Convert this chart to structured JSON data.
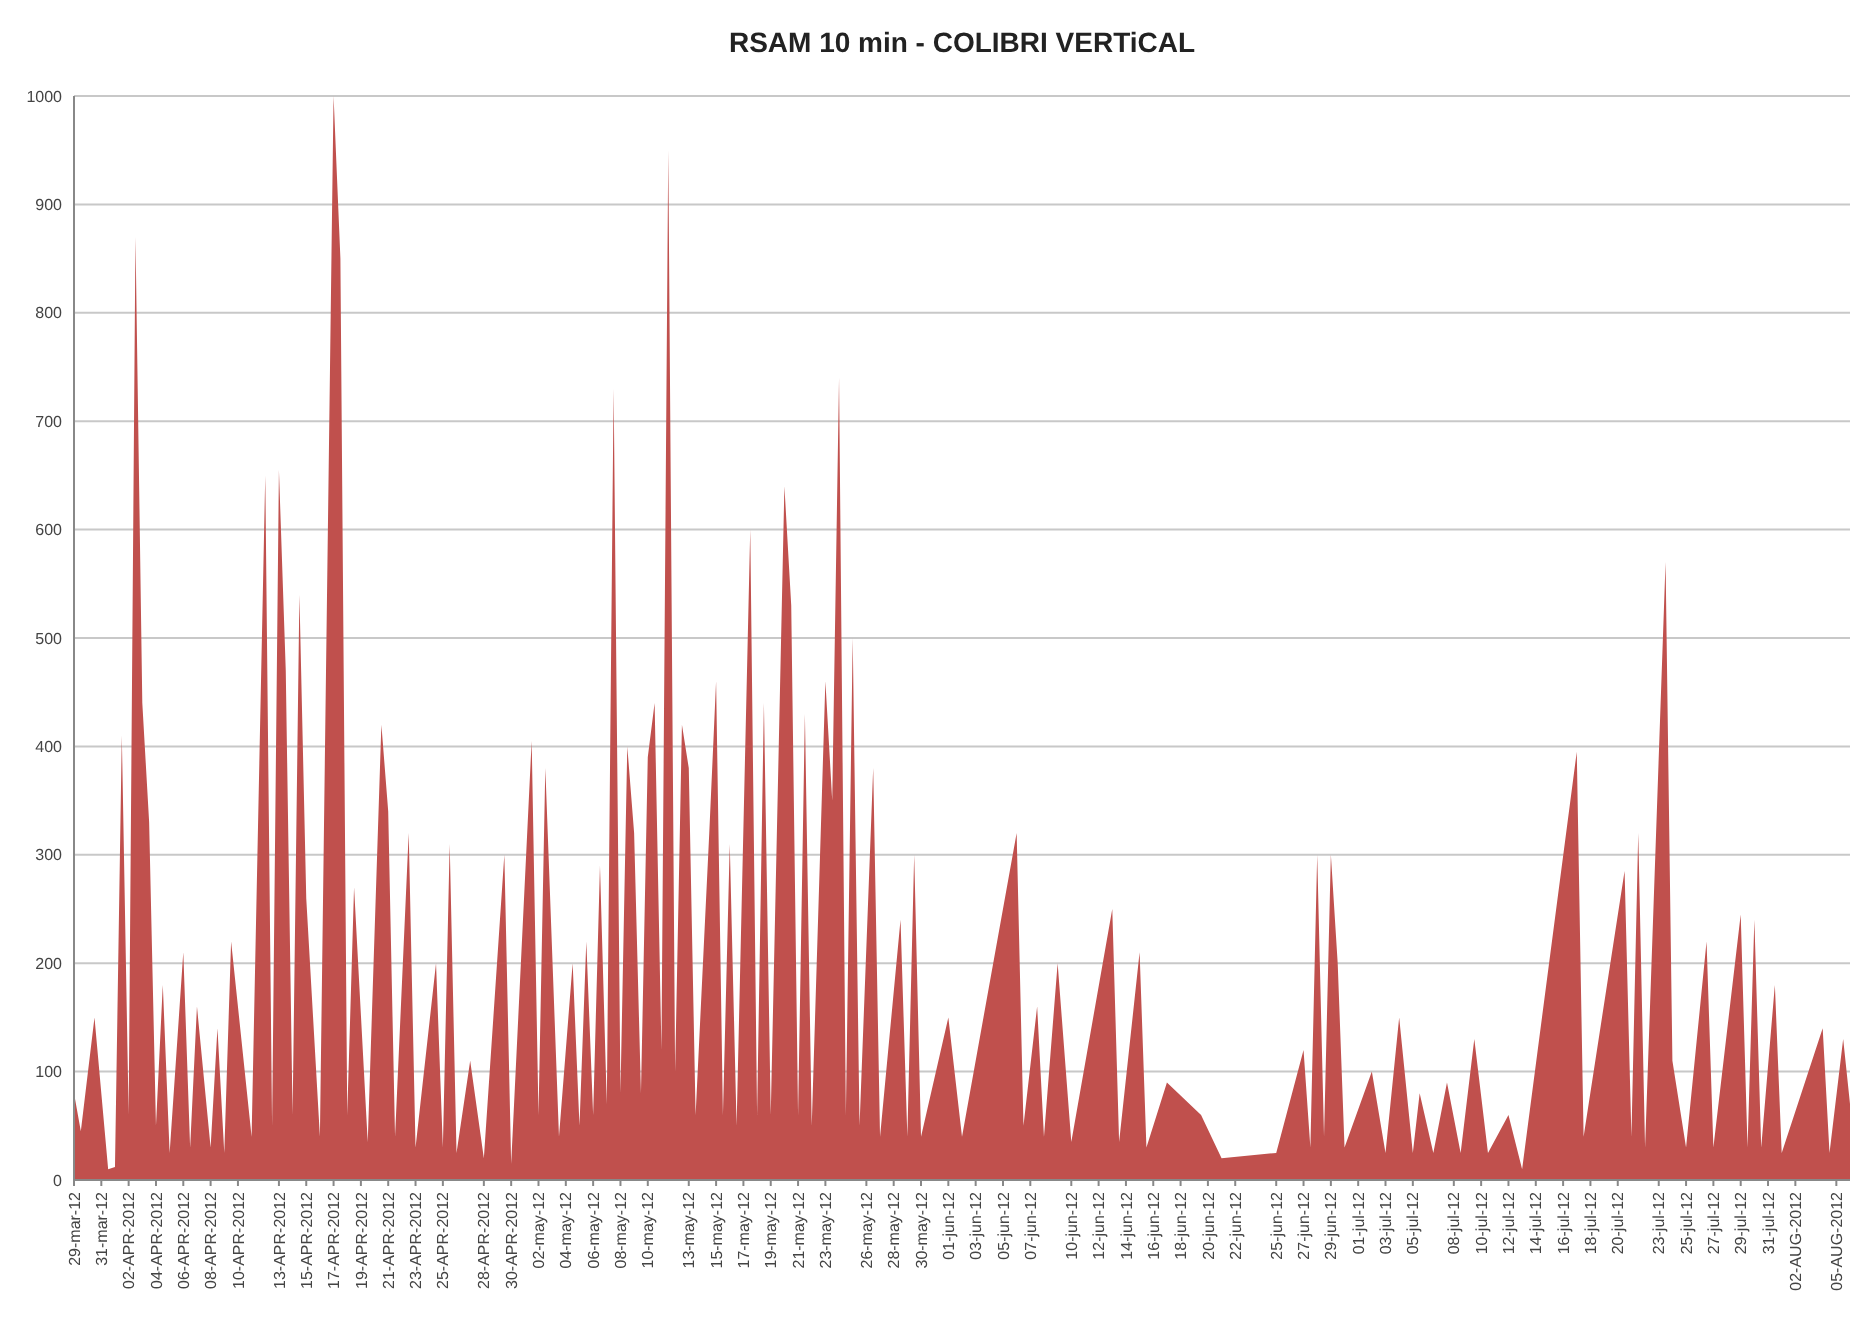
{
  "chart_data": {
    "type": "area",
    "title": "RSAM 10 min - COLIBRI VERTiCAL",
    "grid": "y",
    "ylim": [
      0,
      1000
    ],
    "yticks": [
      0,
      100,
      200,
      300,
      400,
      500,
      600,
      700,
      800,
      900,
      1000
    ],
    "xlim": [
      "2012-03-29",
      "2012-08-06"
    ],
    "xticks": [
      {
        "value": "2012-03-29",
        "label": "29-mar-12"
      },
      {
        "value": "2012-03-31",
        "label": "31-mar-12"
      },
      {
        "value": "2012-04-02",
        "label": "02-APR-2012"
      },
      {
        "value": "2012-04-04",
        "label": "04-APR-2012"
      },
      {
        "value": "2012-04-06",
        "label": "06-APR-2012"
      },
      {
        "value": "2012-04-08",
        "label": "08-APR-2012"
      },
      {
        "value": "2012-04-10",
        "label": "10-APR-2012"
      },
      {
        "value": "2012-04-13",
        "label": "13-APR-2012"
      },
      {
        "value": "2012-04-15",
        "label": "15-APR-2012"
      },
      {
        "value": "2012-04-17",
        "label": "17-APR-2012"
      },
      {
        "value": "2012-04-19",
        "label": "19-APR-2012"
      },
      {
        "value": "2012-04-21",
        "label": "21-APR-2012"
      },
      {
        "value": "2012-04-23",
        "label": "23-APR-2012"
      },
      {
        "value": "2012-04-25",
        "label": "25-APR-2012"
      },
      {
        "value": "2012-04-28",
        "label": "28-APR-2012"
      },
      {
        "value": "2012-04-30",
        "label": "30-APR-2012"
      },
      {
        "value": "2012-05-02",
        "label": "02-may-12"
      },
      {
        "value": "2012-05-04",
        "label": "04-may-12"
      },
      {
        "value": "2012-05-06",
        "label": "06-may-12"
      },
      {
        "value": "2012-05-08",
        "label": "08-may-12"
      },
      {
        "value": "2012-05-10",
        "label": "10-may-12"
      },
      {
        "value": "2012-05-13",
        "label": "13-may-12"
      },
      {
        "value": "2012-05-15",
        "label": "15-may-12"
      },
      {
        "value": "2012-05-17",
        "label": "17-may-12"
      },
      {
        "value": "2012-05-19",
        "label": "19-may-12"
      },
      {
        "value": "2012-05-21",
        "label": "21-may-12"
      },
      {
        "value": "2012-05-23",
        "label": "23-may-12"
      },
      {
        "value": "2012-05-26",
        "label": "26-may-12"
      },
      {
        "value": "2012-05-28",
        "label": "28-may-12"
      },
      {
        "value": "2012-05-30",
        "label": "30-may-12"
      },
      {
        "value": "2012-06-01",
        "label": "01-jun-12"
      },
      {
        "value": "2012-06-03",
        "label": "03-jun-12"
      },
      {
        "value": "2012-06-05",
        "label": "05-jun-12"
      },
      {
        "value": "2012-06-07",
        "label": "07-jun-12"
      },
      {
        "value": "2012-06-10",
        "label": "10-jun-12"
      },
      {
        "value": "2012-06-12",
        "label": "12-jun-12"
      },
      {
        "value": "2012-06-14",
        "label": "14-jun-12"
      },
      {
        "value": "2012-06-16",
        "label": "16-jun-12"
      },
      {
        "value": "2012-06-18",
        "label": "18-jun-12"
      },
      {
        "value": "2012-06-20",
        "label": "20-jun-12"
      },
      {
        "value": "2012-06-22",
        "label": "22-jun-12"
      },
      {
        "value": "2012-06-25",
        "label": "25-jun-12"
      },
      {
        "value": "2012-06-27",
        "label": "27-jun-12"
      },
      {
        "value": "2012-06-29",
        "label": "29-jun-12"
      },
      {
        "value": "2012-07-01",
        "label": "01-jul-12"
      },
      {
        "value": "2012-07-03",
        "label": "03-jul-12"
      },
      {
        "value": "2012-07-05",
        "label": "05-jul-12"
      },
      {
        "value": "2012-07-08",
        "label": "08-jul-12"
      },
      {
        "value": "2012-07-10",
        "label": "10-jul-12"
      },
      {
        "value": "2012-07-12",
        "label": "12-jul-12"
      },
      {
        "value": "2012-07-14",
        "label": "14-jul-12"
      },
      {
        "value": "2012-07-16",
        "label": "16-jul-12"
      },
      {
        "value": "2012-07-18",
        "label": "18-jul-12"
      },
      {
        "value": "2012-07-20",
        "label": "20-jul-12"
      },
      {
        "value": "2012-07-23",
        "label": "23-jul-12"
      },
      {
        "value": "2012-07-25",
        "label": "25-jul-12"
      },
      {
        "value": "2012-07-27",
        "label": "27-jul-12"
      },
      {
        "value": "2012-07-29",
        "label": "29-jul-12"
      },
      {
        "value": "2012-07-31",
        "label": "31-jul-12"
      },
      {
        "value": "2012-08-02",
        "label": "02-AUG-2012"
      },
      {
        "value": "2012-08-05",
        "label": "05-AUG-2012"
      }
    ],
    "x": [
      "2012-03-29",
      "2012-03-29T12:00",
      "2012-03-30T12:00",
      "2012-03-31T12:00",
      "2012-04-01",
      "2012-04-01T12:00",
      "2012-04-02",
      "2012-04-02T12:00",
      "2012-04-03",
      "2012-04-03T12:00",
      "2012-04-04",
      "2012-04-04T12:00",
      "2012-04-05",
      "2012-04-06",
      "2012-04-06T12:00",
      "2012-04-07",
      "2012-04-08",
      "2012-04-08T12:00",
      "2012-04-09",
      "2012-04-09T12:00",
      "2012-04-11",
      "2012-04-12",
      "2012-04-12T12:00",
      "2012-04-13",
      "2012-04-13T12:00",
      "2012-04-14",
      "2012-04-14T12:00",
      "2012-04-15",
      "2012-04-16",
      "2012-04-17",
      "2012-04-17T12:00",
      "2012-04-18",
      "2012-04-18T12:00",
      "2012-04-19T12:00",
      "2012-04-20T12:00",
      "2012-04-21",
      "2012-04-21T12:00",
      "2012-04-22T12:00",
      "2012-04-23",
      "2012-04-24T12:00",
      "2012-04-25",
      "2012-04-25T12:00",
      "2012-04-26",
      "2012-04-27",
      "2012-04-28",
      "2012-04-29T12:00",
      "2012-04-30",
      "2012-05-01T12:00",
      "2012-05-02",
      "2012-05-02T12:00",
      "2012-05-03T12:00",
      "2012-05-04T12:00",
      "2012-05-05",
      "2012-05-05T12:00",
      "2012-05-06",
      "2012-05-06T12:00",
      "2012-05-07",
      "2012-05-07T12:00",
      "2012-05-08",
      "2012-05-08T12:00",
      "2012-05-09",
      "2012-05-09T12:00",
      "2012-05-10",
      "2012-05-10T12:00",
      "2012-05-11",
      "2012-05-11T12:00",
      "2012-05-12",
      "2012-05-12T12:00",
      "2012-05-13",
      "2012-05-13T12:00",
      "2012-05-14T12:00",
      "2012-05-15",
      "2012-05-15T12:00",
      "2012-05-16",
      "2012-05-16T12:00",
      "2012-05-17T12:00",
      "2012-05-18",
      "2012-05-18T12:00",
      "2012-05-19",
      "2012-05-20",
      "2012-05-20T12:00",
      "2012-05-21",
      "2012-05-21T12:00",
      "2012-05-22",
      "2012-05-23",
      "2012-05-23T12:00",
      "2012-05-24",
      "2012-05-24T12:00",
      "2012-05-25",
      "2012-05-25T12:00",
      "2012-05-26T12:00",
      "2012-05-27",
      "2012-05-28T12:00",
      "2012-05-29",
      "2012-05-29T12:00",
      "2012-05-30",
      "2012-06-01",
      "2012-06-02",
      "2012-06-06",
      "2012-06-06T12:00",
      "2012-06-07T12:00",
      "2012-06-08",
      "2012-06-09",
      "2012-06-10",
      "2012-06-13",
      "2012-06-13T12:00",
      "2012-06-15",
      "2012-06-15T12:00",
      "2012-06-17",
      "2012-06-19T12:00",
      "2012-06-21",
      "2012-06-25",
      "2012-06-27",
      "2012-06-27T12:00",
      "2012-06-28",
      "2012-06-28T12:00",
      "2012-06-29",
      "2012-06-29T12:00",
      "2012-06-30",
      "2012-07-02",
      "2012-07-03",
      "2012-07-04",
      "2012-07-05",
      "2012-07-05T12:00",
      "2012-07-06T12:00",
      "2012-07-07T12:00",
      "2012-07-08T12:00",
      "2012-07-09T12:00",
      "2012-07-10T12:00",
      "2012-07-12",
      "2012-07-13",
      "2012-07-17",
      "2012-07-17T12:00",
      "2012-07-20T12:00",
      "2012-07-21",
      "2012-07-21T12:00",
      "2012-07-22",
      "2012-07-23T12:00",
      "2012-07-24",
      "2012-07-25",
      "2012-07-26T12:00",
      "2012-07-27",
      "2012-07-29",
      "2012-07-29T12:00",
      "2012-07-30",
      "2012-07-30T12:00",
      "2012-07-31T12:00",
      "2012-08-01",
      "2012-08-04",
      "2012-08-04T12:00",
      "2012-08-05T12:00",
      "2012-08-06"
    ],
    "series": [
      {
        "color": "#c0504d",
        "values": [
          80,
          45,
          150,
          10,
          12,
          410,
          60,
          870,
          440,
          330,
          50,
          180,
          25,
          210,
          30,
          160,
          30,
          140,
          25,
          220,
          40,
          650,
          50,
          655,
          470,
          60,
          540,
          260,
          40,
          1000,
          850,
          60,
          270,
          35,
          420,
          340,
          40,
          320,
          30,
          200,
          30,
          310,
          25,
          110,
          20,
          300,
          15,
          405,
          60,
          380,
          40,
          200,
          50,
          220,
          60,
          290,
          70,
          730,
          80,
          400,
          320,
          80,
          390,
          440,
          120,
          950,
          100,
          420,
          380,
          60,
          320,
          460,
          60,
          310,
          50,
          600,
          60,
          440,
          60,
          640,
          530,
          60,
          430,
          50,
          460,
          350,
          740,
          60,
          500,
          50,
          380,
          40,
          240,
          40,
          300,
          40,
          150,
          40,
          320,
          50,
          160,
          40,
          200,
          35,
          250,
          35,
          210,
          30,
          90,
          60,
          20,
          25,
          120,
          30,
          300,
          40,
          300,
          200,
          30,
          100,
          25,
          150,
          25,
          80,
          25,
          90,
          25,
          130,
          25,
          60,
          10,
          395,
          40,
          285,
          40,
          320,
          30,
          570,
          110,
          30,
          220,
          30,
          245,
          30,
          240,
          30,
          180,
          25,
          140,
          25,
          130,
          70
        ]
      }
    ]
  }
}
